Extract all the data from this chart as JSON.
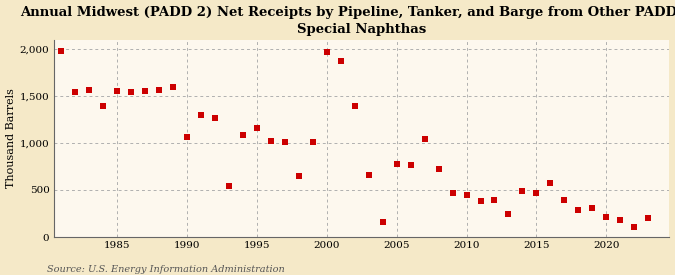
{
  "title": "Annual Midwest (PADD 2) Net Receipts by Pipeline, Tanker, and Barge from Other PADDs of\nSpecial Naphthas",
  "ylabel": "Thousand Barrels",
  "source": "Source: U.S. Energy Information Administration",
  "background_color": "#f5e9c8",
  "plot_background_color": "#fdf8ee",
  "marker_color": "#cc0000",
  "years": [
    1981,
    1982,
    1983,
    1984,
    1985,
    1986,
    1987,
    1988,
    1989,
    1990,
    1991,
    1992,
    1993,
    1994,
    1995,
    1996,
    1997,
    1998,
    1999,
    2000,
    2001,
    2002,
    2003,
    2004,
    2005,
    2006,
    2007,
    2008,
    2009,
    2010,
    2011,
    2012,
    2013,
    2014,
    2015,
    2016,
    2017,
    2018,
    2019,
    2020,
    2021,
    2022,
    2023
  ],
  "values": [
    1975,
    1545,
    1560,
    1390,
    1555,
    1545,
    1555,
    1565,
    1600,
    1060,
    1300,
    1265,
    540,
    1080,
    1155,
    1020,
    1005,
    650,
    1010,
    1970,
    1870,
    1390,
    660,
    155,
    780,
    770,
    1040,
    720,
    465,
    450,
    385,
    390,
    240,
    490,
    465,
    570,
    395,
    285,
    310,
    215,
    185,
    105,
    200
  ],
  "ylim": [
    0,
    2100
  ],
  "yticks": [
    0,
    500,
    1000,
    1500,
    2000
  ],
  "xticks": [
    1985,
    1990,
    1995,
    2000,
    2005,
    2010,
    2015,
    2020
  ],
  "xlim": [
    1980.5,
    2024.5
  ],
  "grid_color": "#b0b0b0",
  "title_fontsize": 9.5,
  "label_fontsize": 8,
  "tick_fontsize": 7.5,
  "source_fontsize": 7
}
